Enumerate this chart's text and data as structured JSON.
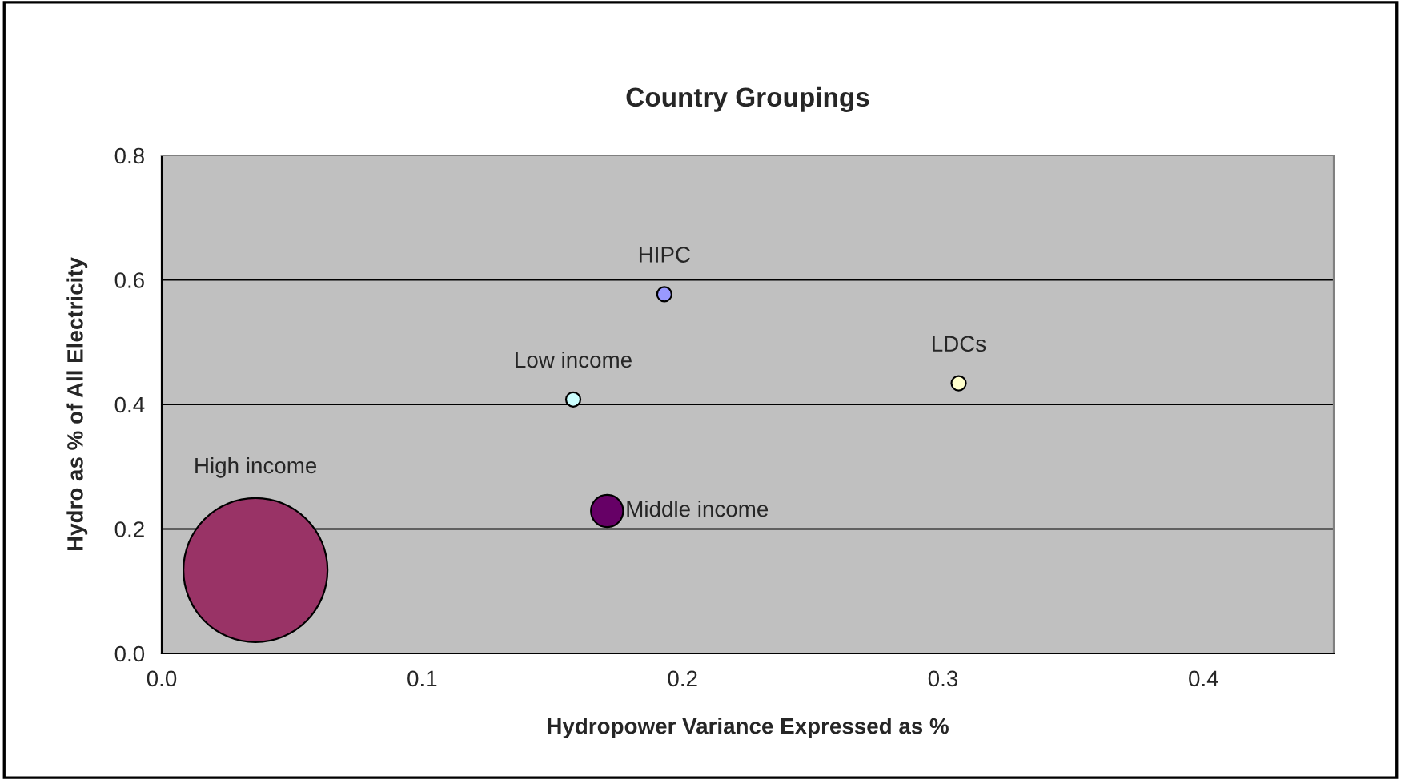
{
  "chart_data": {
    "type": "bubble",
    "title": "Country Groupings",
    "xlabel": "Hydropower Variance Expressed as %",
    "ylabel": "Hydro as % of All Electricity",
    "xlim": [
      0,
      0.45
    ],
    "ylim": [
      0,
      0.8
    ],
    "xticks": [
      {
        "value": 0,
        "label": "0.0"
      },
      {
        "value": 0.1,
        "label": "0.1"
      },
      {
        "value": 0.2,
        "label": "0.2"
      },
      {
        "value": 0.3,
        "label": "0.3"
      },
      {
        "value": 0.4,
        "label": "0.4"
      }
    ],
    "yticks": [
      {
        "value": 0,
        "label": "0.0"
      },
      {
        "value": 0.2,
        "label": "0.2"
      },
      {
        "value": 0.4,
        "label": "0.4"
      },
      {
        "value": 0.6,
        "label": "0.6"
      },
      {
        "value": 0.8,
        "label": "0.8"
      }
    ],
    "grid": "y",
    "legend": false,
    "series": [
      {
        "name": "High income",
        "color": "#993366",
        "x": [
          0.036
        ],
        "values": [
          0.134
        ],
        "sizes": [
          1
        ]
      },
      {
        "name": "Low income",
        "color": "#ccffff",
        "x": [
          0.158
        ],
        "values": [
          0.408
        ],
        "sizes": [
          0.01
        ]
      },
      {
        "name": "HIPC",
        "color": "#9999ff",
        "x": [
          0.193
        ],
        "values": [
          0.577
        ],
        "sizes": [
          0.01
        ]
      },
      {
        "name": "Middle income",
        "color": "#660066",
        "x": [
          0.171
        ],
        "values": [
          0.229
        ],
        "sizes": [
          0.05
        ]
      },
      {
        "name": "LDCs",
        "color": "#ffffcc",
        "x": [
          0.306
        ],
        "values": [
          0.434
        ],
        "sizes": [
          0.01
        ]
      }
    ]
  }
}
